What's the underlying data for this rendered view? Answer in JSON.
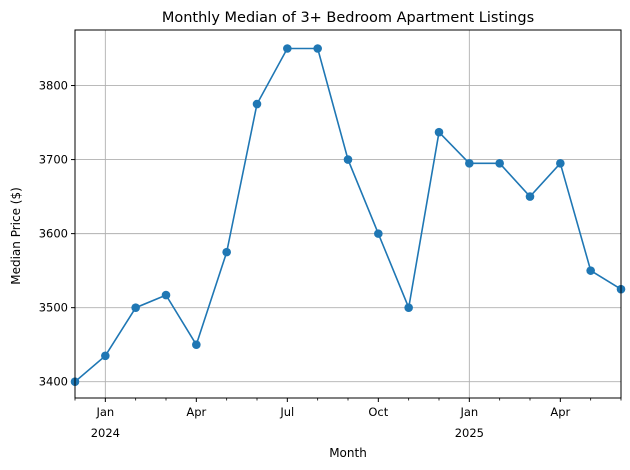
{
  "chart_data": {
    "type": "line",
    "title": "Monthly Median of 3+ Bedroom Apartment Listings",
    "xlabel": "Month",
    "ylabel": "Median Price ($)",
    "x": [
      "2023-12",
      "2024-01",
      "2024-02",
      "2024-03",
      "2024-04",
      "2024-05",
      "2024-06",
      "2024-07",
      "2024-08",
      "2024-09",
      "2024-10",
      "2024-11",
      "2024-12",
      "2025-01",
      "2025-02",
      "2025-03",
      "2025-04",
      "2025-05",
      "2025-06"
    ],
    "series": [
      {
        "values": [
          3400,
          3435,
          3500,
          3517,
          3450,
          3575,
          3775,
          3850,
          3850,
          3700,
          3600,
          3500,
          3737,
          3695,
          3695,
          3650,
          3695,
          3550,
          3525
        ],
        "color": "#1f77b4"
      }
    ],
    "ylim": [
      3378,
      3875
    ],
    "yticks": [
      3400,
      3500,
      3600,
      3700,
      3800
    ],
    "xticks_major": [
      {
        "month": "2024-01",
        "label": "Jan",
        "sublabel": "2024"
      },
      {
        "month": "2024-04",
        "label": "Apr",
        "sublabel": ""
      },
      {
        "month": "2024-07",
        "label": "Jul",
        "sublabel": ""
      },
      {
        "month": "2024-10",
        "label": "Oct",
        "sublabel": ""
      },
      {
        "month": "2025-01",
        "label": "Jan",
        "sublabel": "2025"
      },
      {
        "month": "2025-04",
        "label": "Apr",
        "sublabel": ""
      }
    ],
    "grid": true
  }
}
